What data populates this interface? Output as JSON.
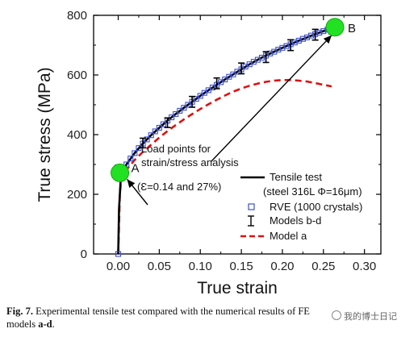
{
  "chart_data": {
    "type": "line",
    "xlabel": "True strain",
    "ylabel": "True stress (MPa)",
    "xlim": [
      -0.03,
      0.32
    ],
    "ylim": [
      0,
      800
    ],
    "xticks": [
      "0.00",
      "0.05",
      "0.10",
      "0.15",
      "0.20",
      "0.25",
      "0.30"
    ],
    "yticks": [
      "0",
      "200",
      "400",
      "600",
      "800"
    ],
    "grid": false,
    "legend_position": "bottom-right",
    "legend": [
      {
        "label": "Tensile test",
        "sublabel": "(steel 316L Φ=16μm)",
        "style": "solid-black"
      },
      {
        "label": "RVE (1000 crystals)",
        "style": "open-square-blue"
      },
      {
        "label": "Models b-d",
        "style": "errorbar-black"
      },
      {
        "label": "Model a",
        "style": "dashed-red"
      }
    ],
    "series": [
      {
        "name": "Tensile test",
        "x": [
          0.0,
          0.001,
          0.003,
          0.005,
          0.01,
          0.02,
          0.03,
          0.04,
          0.05,
          0.06,
          0.07,
          0.08,
          0.09,
          0.1,
          0.11,
          0.12,
          0.13,
          0.14,
          0.15,
          0.16,
          0.17,
          0.18,
          0.19,
          0.2,
          0.21,
          0.22,
          0.23,
          0.24,
          0.25,
          0.26,
          0.265
        ],
        "y": [
          0,
          150,
          250,
          270,
          300,
          338,
          370,
          398,
          423,
          447,
          469,
          490,
          510,
          530,
          549,
          567,
          585,
          602,
          619,
          636,
          651,
          665,
          678,
          691,
          703,
          715,
          726,
          737,
          747,
          757,
          760
        ]
      },
      {
        "name": "RVE (1000 crystals)",
        "x": [
          0.0,
          0.003,
          0.006,
          0.01,
          0.015,
          0.02,
          0.025,
          0.03,
          0.035,
          0.04,
          0.045,
          0.05,
          0.055,
          0.06,
          0.065,
          0.07,
          0.075,
          0.08,
          0.085,
          0.09,
          0.095,
          0.1,
          0.105,
          0.11,
          0.115,
          0.12,
          0.125,
          0.13,
          0.135,
          0.14,
          0.145,
          0.15,
          0.155,
          0.16,
          0.165,
          0.17,
          0.175,
          0.18,
          0.185,
          0.19,
          0.195,
          0.2,
          0.205,
          0.21,
          0.215,
          0.22,
          0.225,
          0.23,
          0.235,
          0.24,
          0.245,
          0.25,
          0.255,
          0.26
        ],
        "y": [
          0,
          265,
          285,
          300,
          320,
          338,
          355,
          370,
          384,
          398,
          411,
          423,
          435,
          447,
          458,
          469,
          480,
          490,
          500,
          510,
          520,
          530,
          540,
          549,
          558,
          567,
          576,
          585,
          594,
          602,
          611,
          619,
          628,
          636,
          644,
          651,
          658,
          665,
          672,
          678,
          685,
          691,
          697,
          703,
          709,
          715,
          721,
          726,
          732,
          737,
          742,
          747,
          752,
          757
        ]
      },
      {
        "name": "Models b-d",
        "x": [
          0.0,
          0.03,
          0.06,
          0.09,
          0.12,
          0.15,
          0.18,
          0.21,
          0.24,
          0.26
        ],
        "y": [
          280,
          372,
          440,
          510,
          572,
          622,
          660,
          700,
          735,
          752
        ],
        "err": [
          18,
          16,
          16,
          18,
          18,
          18,
          18,
          18,
          18,
          14
        ]
      },
      {
        "name": "Model a",
        "x": [
          0.0,
          0.002,
          0.004,
          0.01,
          0.02,
          0.03,
          0.04,
          0.05,
          0.06,
          0.07,
          0.08,
          0.09,
          0.1,
          0.11,
          0.12,
          0.13,
          0.14,
          0.15,
          0.16,
          0.17,
          0.18,
          0.19,
          0.2,
          0.21,
          0.22,
          0.23,
          0.24,
          0.25,
          0.26
        ],
        "y": [
          0,
          200,
          265,
          282,
          315,
          342,
          366,
          390,
          412,
          432,
          451,
          469,
          486,
          502,
          517,
          531,
          544,
          555,
          564,
          571,
          577,
          581,
          583,
          583,
          581,
          578,
          573,
          567,
          562
        ]
      }
    ],
    "annotations": {
      "point_a": {
        "label": "A",
        "x": 0.002,
        "y": 272
      },
      "point_b": {
        "label": "B",
        "x": 0.264,
        "y": 760
      },
      "load_text_1": "Load points for",
      "load_text_2": "strain/stress analysis",
      "epsilon_text": "(Ɛ=0.14 and 27%)"
    }
  },
  "caption": {
    "fig_label": "Fig. 7.",
    "text_1": " Experimental tensile test compared with the numerical results of FE",
    "text_2": "models ",
    "models_label": "a-d",
    "text_3": "."
  },
  "watermark": "我的博士日记",
  "colors": {
    "tensile": "#000000",
    "rve": "#3b4fd0",
    "model_a": "#e01010",
    "highlight": "#22e022",
    "errorbar": "#000000"
  }
}
